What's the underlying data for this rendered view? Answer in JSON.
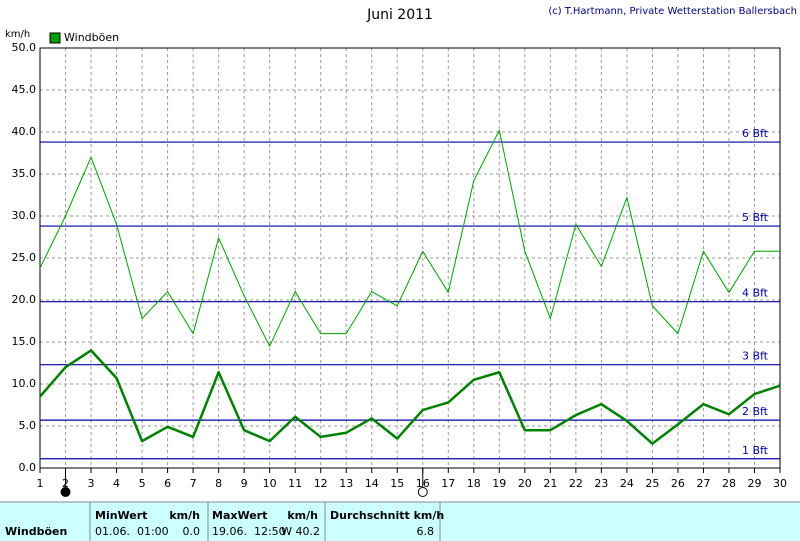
{
  "chart_data": {
    "type": "line",
    "title": "Juni 2011",
    "copyright": "(c) T.Hartmann, Private Wetterstation Ballersbach",
    "y_label": "km/h",
    "x": [
      1,
      2,
      3,
      4,
      5,
      6,
      7,
      8,
      9,
      10,
      11,
      12,
      13,
      14,
      15,
      16,
      17,
      18,
      19,
      20,
      21,
      22,
      23,
      24,
      25,
      26,
      27,
      28,
      29,
      30
    ],
    "xlim": [
      1,
      30
    ],
    "xticks": [
      1,
      2,
      3,
      4,
      5,
      6,
      7,
      8,
      9,
      10,
      11,
      12,
      13,
      14,
      15,
      16,
      17,
      18,
      19,
      20,
      21,
      22,
      23,
      24,
      25,
      26,
      27,
      28,
      29,
      30
    ],
    "ylim": [
      0,
      50
    ],
    "yticks": [
      {
        "value": 0,
        "label": "0.0"
      },
      {
        "value": 5,
        "label": "5.0"
      },
      {
        "value": 10,
        "label": "10.0"
      },
      {
        "value": 15,
        "label": "15.0"
      },
      {
        "value": 20,
        "label": "20.0"
      },
      {
        "value": 25,
        "label": "25.0"
      },
      {
        "value": 30,
        "label": "30.0"
      },
      {
        "value": 35,
        "label": "35.0"
      },
      {
        "value": 40,
        "label": "40.0"
      },
      {
        "value": 45,
        "label": "45.0"
      },
      {
        "value": 50,
        "label": "50.0"
      }
    ],
    "grid": true,
    "series": [
      {
        "name": "Windböen",
        "color": "#00a000",
        "width": 1,
        "values": [
          23.8,
          30,
          37,
          29,
          17.8,
          21,
          16,
          27.4,
          20.5,
          14.5,
          21,
          16,
          16,
          21,
          19.3,
          25.8,
          20.9,
          34.2,
          40.2,
          25.8,
          17.8,
          29,
          24,
          32.2,
          19.3,
          16,
          25.8,
          20.9,
          25.8,
          25.8
        ]
      },
      {
        "color": "#008000",
        "width": 2.5,
        "values": [
          8.5,
          12,
          14,
          10.7,
          3.2,
          4.9,
          3.7,
          11.4,
          4.5,
          3.2,
          6.1,
          3.7,
          4.2,
          5.9,
          3.5,
          6.9,
          7.8,
          10.5,
          11.4,
          4.5,
          4.5,
          6.3,
          7.6,
          5.6,
          2.9,
          5.2,
          7.6,
          6.4,
          8.8,
          9.8
        ]
      }
    ],
    "reference_lines": {
      "color": "#0000a0",
      "lines": [
        {
          "value": 1.1,
          "label": "1 Bft"
        },
        {
          "value": 5.7,
          "label": "2 Bft"
        },
        {
          "value": 12.3,
          "label": "3 Bft"
        },
        {
          "value": 19.8,
          "label": "4 Bft"
        },
        {
          "value": 28.8,
          "label": "5 Bft"
        },
        {
          "value": 38.8,
          "label": "6 Bft"
        }
      ]
    }
  },
  "table": {
    "row_label": "Windböen",
    "columns": [
      {
        "header": "MinWert",
        "unit": "km/h",
        "date": "01.06.  01:00",
        "value": "0.0"
      },
      {
        "header": "MaxWert",
        "unit": "km/h",
        "date": "19.06.  12:50",
        "value": "W 40.2"
      },
      {
        "header": "Durchschnitt km/h",
        "value": "6.8"
      }
    ]
  }
}
